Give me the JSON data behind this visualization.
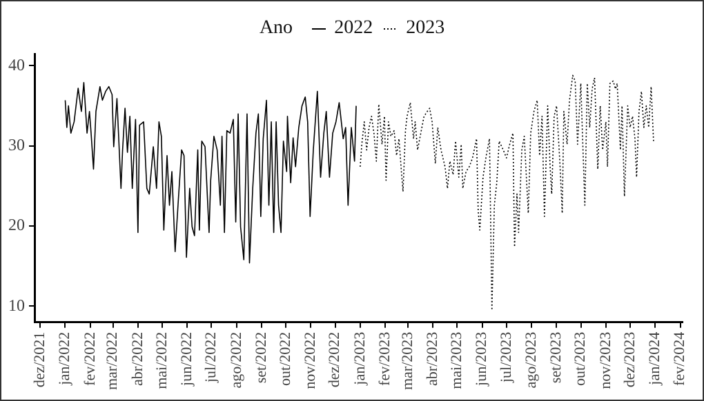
{
  "chart_data": {
    "type": "line",
    "legend_title": "Ano",
    "legend": "top",
    "marker": "none",
    "grid": false,
    "xlim": [
      "2021-11-24",
      "2024-02-04"
    ],
    "xticks": [
      {
        "value": "2021-12-01",
        "label": "dez/2021"
      },
      {
        "value": "2022-01-01",
        "label": "jan/2022"
      },
      {
        "value": "2022-02-01",
        "label": "fev/2022"
      },
      {
        "value": "2022-03-01",
        "label": "mar/2022"
      },
      {
        "value": "2022-04-01",
        "label": "abr/2022"
      },
      {
        "value": "2022-05-01",
        "label": "mai/2022"
      },
      {
        "value": "2022-06-01",
        "label": "jun/2022"
      },
      {
        "value": "2022-07-01",
        "label": "jul/2022"
      },
      {
        "value": "2022-08-01",
        "label": "ago/2022"
      },
      {
        "value": "2022-09-01",
        "label": "set/2022"
      },
      {
        "value": "2022-10-01",
        "label": "out/2022"
      },
      {
        "value": "2022-11-01",
        "label": "nov/2022"
      },
      {
        "value": "2022-12-01",
        "label": "dez/2022"
      },
      {
        "value": "2023-01-01",
        "label": "jan/2023"
      },
      {
        "value": "2023-02-01",
        "label": "fev/2023"
      },
      {
        "value": "2023-03-01",
        "label": "mar/2023"
      },
      {
        "value": "2023-04-01",
        "label": "abr/2023"
      },
      {
        "value": "2023-05-01",
        "label": "mai/2023"
      },
      {
        "value": "2023-06-01",
        "label": "jun/2023"
      },
      {
        "value": "2023-07-01",
        "label": "jul/2023"
      },
      {
        "value": "2023-08-01",
        "label": "ago/2023"
      },
      {
        "value": "2023-09-01",
        "label": "set/2023"
      },
      {
        "value": "2023-10-01",
        "label": "out/2023"
      },
      {
        "value": "2023-11-01",
        "label": "nov/2023"
      },
      {
        "value": "2023-12-01",
        "label": "dez/2023"
      },
      {
        "value": "2024-01-01",
        "label": "jan/2024"
      },
      {
        "value": "2024-02-01",
        "label": "fev/2024"
      }
    ],
    "ylim": [
      8,
      41.5
    ],
    "yticks": [
      10,
      20,
      30,
      40
    ],
    "series": [
      {
        "name": "2022",
        "color": "#000000",
        "line_style": "solid",
        "x": [
          "2022-01-01",
          "2022-01-03",
          "2022-01-05",
          "2022-01-08",
          "2022-01-12",
          "2022-01-17",
          "2022-01-21",
          "2022-01-24",
          "2022-01-28",
          "2022-01-31",
          "2022-02-02",
          "2022-02-05",
          "2022-02-08",
          "2022-02-13",
          "2022-02-16",
          "2022-02-20",
          "2022-02-24",
          "2022-02-28",
          "2022-03-02",
          "2022-03-06",
          "2022-03-11",
          "2022-03-13",
          "2022-03-16",
          "2022-03-19",
          "2022-03-22",
          "2022-03-25",
          "2022-03-29",
          "2022-04-01",
          "2022-04-03",
          "2022-04-08",
          "2022-04-12",
          "2022-04-15",
          "2022-04-20",
          "2022-04-24",
          "2022-04-27",
          "2022-04-30",
          "2022-05-03",
          "2022-05-07",
          "2022-05-10",
          "2022-05-13",
          "2022-05-17",
          "2022-05-21",
          "2022-05-25",
          "2022-05-28",
          "2022-05-31",
          "2022-06-04",
          "2022-06-07",
          "2022-06-10",
          "2022-06-14",
          "2022-06-16",
          "2022-06-19",
          "2022-06-23",
          "2022-06-28",
          "2022-06-30",
          "2022-07-04",
          "2022-07-08",
          "2022-07-12",
          "2022-07-14",
          "2022-07-17",
          "2022-07-20",
          "2022-07-24",
          "2022-07-28",
          "2022-07-31",
          "2022-08-03",
          "2022-08-06",
          "2022-08-10",
          "2022-08-14",
          "2022-08-17",
          "2022-08-21",
          "2022-08-25",
          "2022-08-28",
          "2022-08-31",
          "2022-09-03",
          "2022-09-07",
          "2022-09-10",
          "2022-09-13",
          "2022-09-16",
          "2022-09-19",
          "2022-09-22",
          "2022-09-25",
          "2022-09-28",
          "2022-10-02",
          "2022-10-03",
          "2022-10-07",
          "2022-10-10",
          "2022-10-13",
          "2022-10-17",
          "2022-10-21",
          "2022-10-25",
          "2022-10-28",
          "2022-10-31",
          "2022-11-04",
          "2022-11-09",
          "2022-11-13",
          "2022-11-17",
          "2022-11-20",
          "2022-11-24",
          "2022-11-28",
          "2022-12-02",
          "2022-12-06",
          "2022-12-11",
          "2022-12-14",
          "2022-12-17",
          "2022-12-21",
          "2022-12-25",
          "2022-12-27"
        ],
        "values": [
          35.7,
          32.3,
          35,
          31.6,
          33,
          37.2,
          34.3,
          37.9,
          31.6,
          34.3,
          31.6,
          27.1,
          34.3,
          37.4,
          35.7,
          36.8,
          37.4,
          36.4,
          29.9,
          35.9,
          24.7,
          29.5,
          34.7,
          29.2,
          33.7,
          24.7,
          33.3,
          19.2,
          32.6,
          33,
          24.7,
          24,
          29.9,
          24.7,
          33,
          31.2,
          19.5,
          28.8,
          22.6,
          26.8,
          16.8,
          23.3,
          29.5,
          28.8,
          16.1,
          24.7,
          19.9,
          18.8,
          29.5,
          19.5,
          30.6,
          29.9,
          19.2,
          25.7,
          31.2,
          29.5,
          22.6,
          31.2,
          19.2,
          31.9,
          31.6,
          33.3,
          20.5,
          34,
          19.9,
          15.8,
          34,
          15.4,
          24.7,
          31.6,
          34,
          21.2,
          30.9,
          35.7,
          22.6,
          33,
          19.2,
          33,
          22.6,
          19.2,
          30.6,
          26.8,
          33.7,
          25.4,
          31,
          27.4,
          32.3,
          35,
          36.1,
          33,
          21.2,
          29.5,
          36.8,
          26.1,
          31.6,
          34.3,
          26.1,
          31.6,
          33,
          35.4,
          30.9,
          32.3,
          22.6,
          32.3,
          28.1,
          35
        ]
      },
      {
        "name": "2023",
        "color": "#000000",
        "line_style": "dotted",
        "x": [
          "2023-01-01",
          "2023-01-03",
          "2023-01-06",
          "2023-01-09",
          "2023-01-12",
          "2023-01-15",
          "2023-01-18",
          "2023-01-21",
          "2023-01-24",
          "2023-01-28",
          "2023-01-31",
          "2023-02-02",
          "2023-02-05",
          "2023-02-08",
          "2023-02-12",
          "2023-02-15",
          "2023-02-18",
          "2023-02-21",
          "2023-02-23",
          "2023-02-26",
          "2023-02-28",
          "2023-03-04",
          "2023-03-08",
          "2023-03-10",
          "2023-03-13",
          "2023-03-17",
          "2023-03-21",
          "2023-03-25",
          "2023-03-28",
          "2023-03-31",
          "2023-04-04",
          "2023-04-07",
          "2023-04-11",
          "2023-04-16",
          "2023-04-19",
          "2023-04-22",
          "2023-04-26",
          "2023-04-29",
          "2023-05-03",
          "2023-05-06",
          "2023-05-08",
          "2023-05-12",
          "2023-05-16",
          "2023-05-20",
          "2023-05-25",
          "2023-05-27",
          "2023-05-29",
          "2023-06-02",
          "2023-06-06",
          "2023-06-10",
          "2023-06-13",
          "2023-06-16",
          "2023-06-19",
          "2023-06-22",
          "2023-06-27",
          "2023-07-01",
          "2023-07-05",
          "2023-07-09",
          "2023-07-11",
          "2023-07-14",
          "2023-07-16",
          "2023-07-20",
          "2023-07-23",
          "2023-07-28",
          "2023-07-31",
          "2023-08-04",
          "2023-08-08",
          "2023-08-11",
          "2023-08-14",
          "2023-08-17",
          "2023-08-21",
          "2023-08-24",
          "2023-08-26",
          "2023-08-29",
          "2023-09-01",
          "2023-09-05",
          "2023-09-08",
          "2023-09-10",
          "2023-09-14",
          "2023-09-17",
          "2023-09-21",
          "2023-09-24",
          "2023-09-27",
          "2023-10-01",
          "2023-10-03",
          "2023-10-06",
          "2023-10-09",
          "2023-10-12",
          "2023-10-15",
          "2023-10-18",
          "2023-10-22",
          "2023-10-25",
          "2023-10-28",
          "2023-11-01",
          "2023-11-03",
          "2023-11-06",
          "2023-11-10",
          "2023-11-13",
          "2023-11-15",
          "2023-11-19",
          "2023-11-21",
          "2023-11-24",
          "2023-11-28",
          "2023-12-01",
          "2023-12-04",
          "2023-12-07",
          "2023-12-09",
          "2023-12-12",
          "2023-12-15",
          "2023-12-18",
          "2023-12-21",
          "2023-12-24",
          "2023-12-27",
          "2023-12-30"
        ],
        "values": [
          27.4,
          30.2,
          33,
          29.5,
          32.3,
          33.7,
          31.6,
          28.1,
          35.2,
          30.2,
          33.7,
          25.7,
          33,
          31.2,
          31.9,
          28.8,
          30.9,
          26.8,
          24.3,
          31.9,
          33.7,
          35.4,
          30.9,
          33,
          29.5,
          31.6,
          33.7,
          34.3,
          34.7,
          33,
          27.8,
          32.3,
          29.5,
          27.4,
          24.7,
          28.1,
          26.4,
          30.6,
          26.1,
          30.2,
          24.7,
          26.8,
          27.4,
          28.5,
          30.9,
          21.9,
          19.5,
          26.1,
          28.8,
          30.9,
          9.5,
          22.6,
          25.4,
          30.6,
          29.5,
          28.5,
          30.2,
          31.6,
          17.4,
          24,
          19.2,
          29.5,
          31.2,
          21.6,
          31.6,
          34.3,
          35.7,
          28.8,
          33.7,
          21.2,
          35,
          27.4,
          24,
          33.7,
          35,
          28.1,
          21.6,
          34.3,
          30.2,
          35.7,
          38.8,
          38.1,
          30.2,
          37.8,
          31.6,
          22.6,
          37.8,
          32.3,
          37.1,
          38.5,
          27.1,
          35,
          29.5,
          33,
          27.4,
          37.8,
          38.1,
          37.1,
          37.8,
          29.5,
          35,
          23.7,
          35,
          32.3,
          33.7,
          30.9,
          26.1,
          34.3,
          36.8,
          32.3,
          35,
          32.3,
          37.4,
          30.6
        ]
      }
    ]
  }
}
